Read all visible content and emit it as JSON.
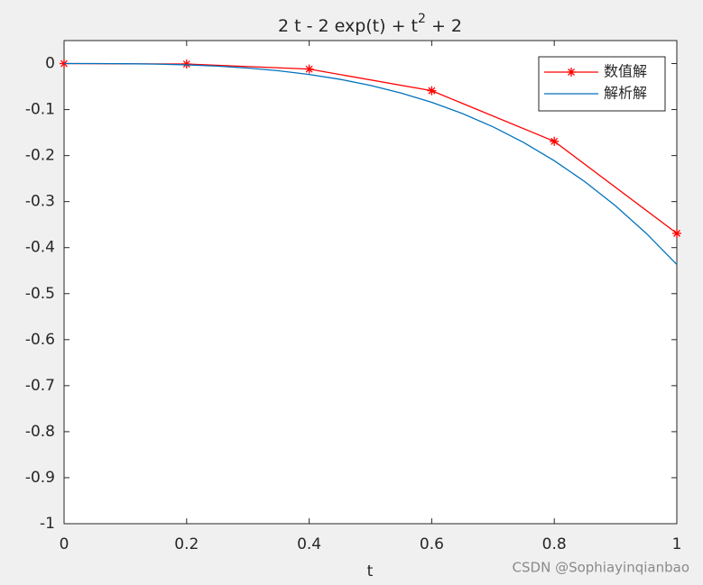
{
  "chart_data": {
    "type": "line",
    "title": [
      "2 t - 2 exp(t) + t",
      "2",
      " + 2"
    ],
    "xlabel": "t",
    "xlim": [
      0,
      1
    ],
    "xticks": [
      0,
      0.2,
      0.4,
      0.6,
      0.8,
      1
    ],
    "ylim": [
      -1,
      0.05
    ],
    "yticks": [
      0,
      -0.1,
      -0.2,
      -0.3,
      -0.4,
      -0.5,
      -0.6,
      -0.7,
      -0.8,
      -0.9,
      -1
    ],
    "legend": "upper-right",
    "series": [
      {
        "name": "数值解",
        "color": "#ff0000",
        "marker": "asterisk",
        "x": [
          0,
          0.2,
          0.4,
          0.6,
          0.8,
          1
        ],
        "values": [
          0,
          -0.001,
          -0.012,
          -0.059,
          -0.169,
          -0.369
        ]
      },
      {
        "name": "解析解",
        "color": "#0072bd",
        "marker": "none",
        "x": [
          0,
          0.05,
          0.1,
          0.15,
          0.2,
          0.25,
          0.3,
          0.35,
          0.4,
          0.45,
          0.5,
          0.55,
          0.6,
          0.65,
          0.7,
          0.75,
          0.8,
          0.85,
          0.9,
          0.95,
          1
        ],
        "values": [
          0,
          -0.0,
          -0.0003,
          -0.0012,
          -0.0028,
          -0.0056,
          -0.0097,
          -0.0156,
          -0.0237,
          -0.0341,
          -0.0474,
          -0.064,
          -0.0842,
          -0.1086,
          -0.1375,
          -0.1715,
          -0.2111,
          -0.2568,
          -0.3092,
          -0.3689,
          -0.4366
        ]
      }
    ],
    "watermark": "CSDN @Sophiayinqianbao"
  }
}
